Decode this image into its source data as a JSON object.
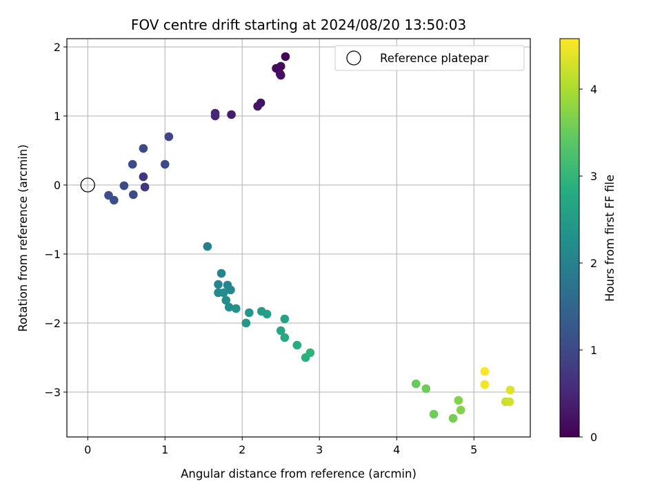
{
  "chart_data": {
    "type": "scatter",
    "title": "FOV centre drift starting at 2024/08/20 13:50:03",
    "xlabel": "Angular distance from reference (arcmin)",
    "ylabel": "Rotation from reference (arcmin)",
    "xlim": [
      -0.27,
      5.73
    ],
    "ylim": [
      -3.65,
      2.12
    ],
    "x_ticks": [
      0,
      1,
      2,
      3,
      4,
      5
    ],
    "y_ticks": [
      -3,
      -2,
      -1,
      0,
      1,
      2
    ],
    "x_tick_labels": [
      "0",
      "1",
      "2",
      "3",
      "4",
      "5"
    ],
    "y_tick_labels": [
      "−3",
      "−2",
      "−1",
      "0",
      "1",
      "2"
    ],
    "grid": true,
    "legend_position": "upper right",
    "legend": {
      "label": "Reference platepar"
    },
    "reference_point": {
      "x": 0,
      "y": 0
    },
    "colorbar": {
      "label": "Hours from first FF file",
      "colormap": "viridis",
      "range": [
        0,
        4.58
      ],
      "ticks": [
        0,
        1,
        2,
        3,
        4
      ],
      "tick_labels": [
        "0",
        "1",
        "2",
        "3",
        "4"
      ]
    },
    "points": [
      {
        "x": 2.56,
        "y": 1.86,
        "c": 0.05
      },
      {
        "x": 2.44,
        "y": 1.69,
        "c": 0.1
      },
      {
        "x": 2.5,
        "y": 1.72,
        "c": 0.12
      },
      {
        "x": 2.49,
        "y": 1.61,
        "c": 0.15
      },
      {
        "x": 2.5,
        "y": 1.59,
        "c": 0.18
      },
      {
        "x": 2.24,
        "y": 1.19,
        "c": 0.22
      },
      {
        "x": 2.2,
        "y": 1.14,
        "c": 0.25
      },
      {
        "x": 1.86,
        "y": 1.02,
        "c": 0.35
      },
      {
        "x": 1.65,
        "y": 1.04,
        "c": 0.45
      },
      {
        "x": 1.65,
        "y": 1.0,
        "c": 0.5
      },
      {
        "x": 0.72,
        "y": 0.12,
        "c": 0.7
      },
      {
        "x": 0.74,
        "y": -0.03,
        "c": 0.75
      },
      {
        "x": 1.05,
        "y": 0.7,
        "c": 0.95
      },
      {
        "x": 1.0,
        "y": 0.3,
        "c": 1.0
      },
      {
        "x": 0.72,
        "y": 0.53,
        "c": 1.0
      },
      {
        "x": 0.58,
        "y": 0.3,
        "c": 1.05
      },
      {
        "x": 0.47,
        "y": -0.01,
        "c": 1.05
      },
      {
        "x": 0.59,
        "y": -0.14,
        "c": 1.05
      },
      {
        "x": 0.27,
        "y": -0.15,
        "c": 1.1
      },
      {
        "x": 0.34,
        "y": -0.22,
        "c": 1.1
      },
      {
        "x": 1.55,
        "y": -0.89,
        "c": 1.95
      },
      {
        "x": 1.73,
        "y": -1.28,
        "c": 2.05
      },
      {
        "x": 1.69,
        "y": -1.44,
        "c": 2.1
      },
      {
        "x": 1.81,
        "y": -1.45,
        "c": 2.1
      },
      {
        "x": 1.85,
        "y": -1.52,
        "c": 2.15
      },
      {
        "x": 1.69,
        "y": -1.56,
        "c": 2.15
      },
      {
        "x": 1.76,
        "y": -1.56,
        "c": 2.2
      },
      {
        "x": 1.79,
        "y": -1.67,
        "c": 2.2
      },
      {
        "x": 1.83,
        "y": -1.77,
        "c": 2.25
      },
      {
        "x": 1.92,
        "y": -1.79,
        "c": 2.3
      },
      {
        "x": 2.09,
        "y": -1.85,
        "c": 2.4
      },
      {
        "x": 2.05,
        "y": -2.0,
        "c": 2.4
      },
      {
        "x": 2.25,
        "y": -1.83,
        "c": 2.5
      },
      {
        "x": 2.32,
        "y": -1.87,
        "c": 2.55
      },
      {
        "x": 2.55,
        "y": -1.94,
        "c": 2.65
      },
      {
        "x": 2.5,
        "y": -2.11,
        "c": 2.7
      },
      {
        "x": 2.55,
        "y": -2.21,
        "c": 2.75
      },
      {
        "x": 2.71,
        "y": -2.32,
        "c": 2.85
      },
      {
        "x": 2.82,
        "y": -2.5,
        "c": 2.9
      },
      {
        "x": 2.88,
        "y": -2.43,
        "c": 2.95
      },
      {
        "x": 4.25,
        "y": -2.88,
        "c": 3.5
      },
      {
        "x": 4.38,
        "y": -2.95,
        "c": 3.55
      },
      {
        "x": 4.48,
        "y": -3.32,
        "c": 3.55
      },
      {
        "x": 4.73,
        "y": -3.38,
        "c": 3.6
      },
      {
        "x": 4.8,
        "y": -3.12,
        "c": 3.7
      },
      {
        "x": 4.83,
        "y": -3.26,
        "c": 3.7
      },
      {
        "x": 5.14,
        "y": -2.7,
        "c": 4.55
      },
      {
        "x": 5.14,
        "y": -2.89,
        "c": 4.5
      },
      {
        "x": 5.41,
        "y": -3.14,
        "c": 4.2
      },
      {
        "x": 5.46,
        "y": -3.14,
        "c": 4.25
      },
      {
        "x": 5.47,
        "y": -2.97,
        "c": 4.35
      }
    ]
  }
}
